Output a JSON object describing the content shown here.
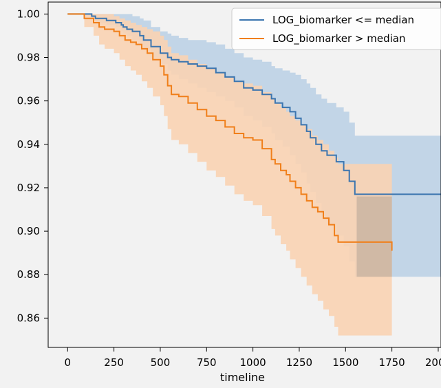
{
  "chart_data": {
    "type": "line",
    "xlabel": "timeline",
    "ylabel": "",
    "xlim": [
      -105,
      2015
    ],
    "ylim": [
      0.8465,
      1.0055
    ],
    "x_ticks": [
      0,
      250,
      500,
      750,
      1000,
      1250,
      1500,
      1750,
      2000
    ],
    "y_ticks": [
      1.0,
      0.98,
      0.96,
      0.94,
      0.92,
      0.9,
      0.88,
      0.86
    ],
    "grid": false,
    "legend_position": "top-right",
    "series": [
      {
        "name": "LOG_biomarker <= median",
        "color": "#3b75af",
        "fill": "#bcd1e6",
        "x": [
          0,
          130,
          150,
          210,
          260,
          290,
          300,
          320,
          350,
          390,
          410,
          450,
          500,
          540,
          560,
          600,
          650,
          700,
          750,
          800,
          850,
          900,
          950,
          1000,
          1050,
          1100,
          1120,
          1160,
          1200,
          1230,
          1260,
          1290,
          1310,
          1340,
          1370,
          1400,
          1450,
          1490,
          1520,
          1550,
          2030
        ],
        "y": [
          1.0,
          0.999,
          0.998,
          0.997,
          0.996,
          0.995,
          0.994,
          0.993,
          0.992,
          0.99,
          0.988,
          0.985,
          0.982,
          0.98,
          0.979,
          0.978,
          0.977,
          0.976,
          0.975,
          0.973,
          0.971,
          0.969,
          0.966,
          0.965,
          0.963,
          0.961,
          0.959,
          0.957,
          0.955,
          0.952,
          0.949,
          0.946,
          0.943,
          0.94,
          0.937,
          0.935,
          0.932,
          0.928,
          0.923,
          0.917,
          0.917
        ],
        "ci_lower": [
          1.0,
          0.998,
          0.996,
          0.995,
          0.994,
          0.992,
          0.991,
          0.99,
          0.988,
          0.986,
          0.984,
          0.98,
          0.977,
          0.974,
          0.972,
          0.97,
          0.968,
          0.966,
          0.964,
          0.962,
          0.96,
          0.957,
          0.953,
          0.951,
          0.948,
          0.945,
          0.942,
          0.939,
          0.935,
          0.931,
          0.927,
          0.922,
          0.918,
          0.913,
          0.907,
          0.903,
          0.898,
          0.893,
          0.886,
          0.879,
          0.879
        ],
        "ci_upper": [
          1.0,
          1.0,
          1.0,
          1.0,
          1.0,
          1.0,
          1.0,
          1.0,
          0.999,
          0.998,
          0.997,
          0.994,
          0.992,
          0.991,
          0.99,
          0.989,
          0.988,
          0.988,
          0.987,
          0.986,
          0.984,
          0.982,
          0.98,
          0.979,
          0.978,
          0.976,
          0.975,
          0.974,
          0.973,
          0.972,
          0.97,
          0.968,
          0.966,
          0.963,
          0.961,
          0.959,
          0.957,
          0.955,
          0.95,
          0.944,
          0.944
        ]
      },
      {
        "name": "LOG_biomarker > median",
        "color": "#f07f1a",
        "fill": "#f9d3b3",
        "x": [
          0,
          90,
          140,
          170,
          200,
          250,
          280,
          310,
          340,
          370,
          400,
          430,
          460,
          500,
          520,
          540,
          560,
          600,
          650,
          700,
          750,
          800,
          850,
          900,
          950,
          1000,
          1050,
          1100,
          1120,
          1150,
          1180,
          1200,
          1230,
          1260,
          1290,
          1320,
          1350,
          1380,
          1410,
          1440,
          1460,
          1750
        ],
        "y": [
          1.0,
          0.998,
          0.996,
          0.994,
          0.993,
          0.992,
          0.99,
          0.988,
          0.987,
          0.986,
          0.984,
          0.982,
          0.979,
          0.976,
          0.972,
          0.967,
          0.963,
          0.962,
          0.959,
          0.956,
          0.953,
          0.951,
          0.948,
          0.945,
          0.943,
          0.942,
          0.938,
          0.933,
          0.931,
          0.928,
          0.926,
          0.923,
          0.92,
          0.917,
          0.914,
          0.911,
          0.909,
          0.906,
          0.903,
          0.898,
          0.895,
          0.891
        ],
        "ci_lower": [
          1.0,
          0.994,
          0.99,
          0.986,
          0.984,
          0.982,
          0.979,
          0.976,
          0.974,
          0.972,
          0.969,
          0.966,
          0.962,
          0.958,
          0.953,
          0.947,
          0.942,
          0.94,
          0.936,
          0.932,
          0.928,
          0.925,
          0.921,
          0.917,
          0.914,
          0.912,
          0.907,
          0.901,
          0.898,
          0.894,
          0.891,
          0.887,
          0.883,
          0.879,
          0.875,
          0.871,
          0.868,
          0.864,
          0.861,
          0.856,
          0.852,
          0.86
        ],
        "ci_upper": [
          1.0,
          1.0,
          1.0,
          1.0,
          1.0,
          0.999,
          0.998,
          0.997,
          0.996,
          0.995,
          0.994,
          0.993,
          0.992,
          0.99,
          0.988,
          0.985,
          0.982,
          0.981,
          0.979,
          0.977,
          0.975,
          0.973,
          0.971,
          0.969,
          0.968,
          0.967,
          0.964,
          0.961,
          0.959,
          0.957,
          0.955,
          0.953,
          0.951,
          0.949,
          0.947,
          0.944,
          0.942,
          0.94,
          0.937,
          0.934,
          0.931,
          0.916
        ]
      }
    ],
    "overlap_band": {
      "color": "#c4b09f",
      "x": [
        1560,
        1750
      ],
      "lower": 0.879,
      "upper": 0.916
    }
  }
}
